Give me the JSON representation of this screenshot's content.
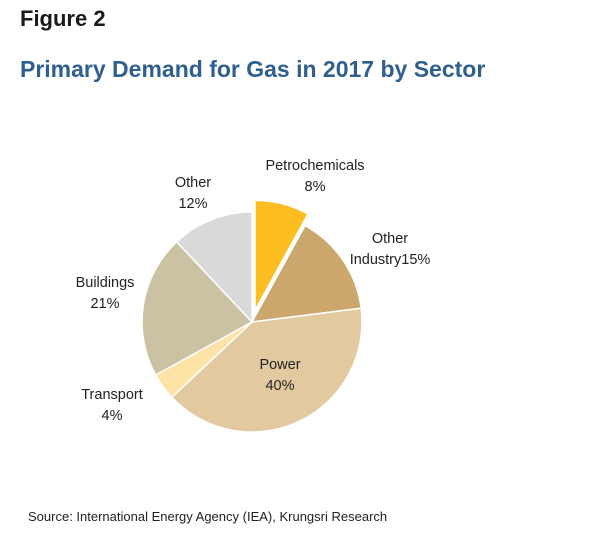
{
  "figure_label": "Figure 2",
  "source": "Source: International Energy Agency (IEA), Krungsri Research",
  "chart_data": {
    "type": "pie",
    "title": "Primary Demand for Gas in 2017 by Sector",
    "unit": "%",
    "slices": [
      {
        "label": "Petrochemicals",
        "value": 8,
        "value_label": "8%",
        "color": "#FBBD1F",
        "exploded": true
      },
      {
        "label": "Other Industry",
        "value": 15,
        "value_label": "15%",
        "color": "#CCA76D",
        "exploded": false
      },
      {
        "label": "Power",
        "value": 40,
        "value_label": "40%",
        "color": "#E2C9A0",
        "exploded": false
      },
      {
        "label": "Transport",
        "value": 4,
        "value_label": "4%",
        "color": "#FDE3A6",
        "exploded": false
      },
      {
        "label": "Buildings",
        "value": 21,
        "value_label": "21%",
        "color": "#CBC2A3",
        "exploded": false
      },
      {
        "label": "Other",
        "value": 12,
        "value_label": "12%",
        "color": "#D9D9D9",
        "exploded": false
      }
    ]
  }
}
